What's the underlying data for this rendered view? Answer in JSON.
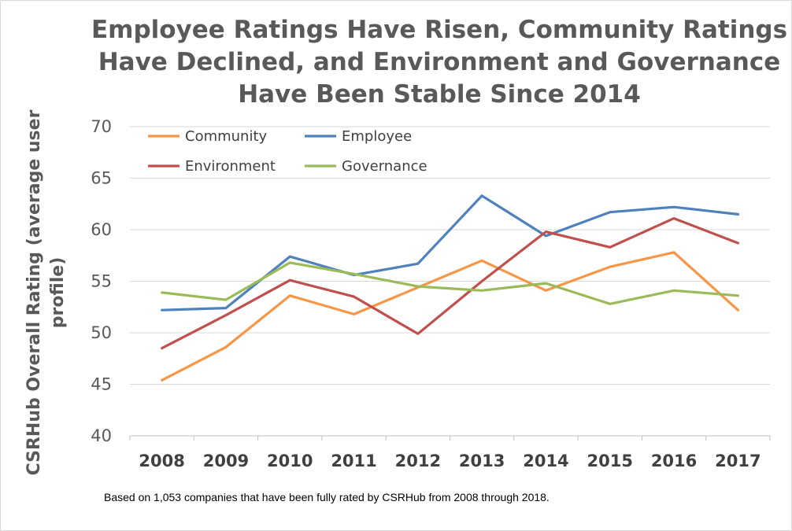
{
  "chart_data": {
    "type": "line",
    "title": [
      "Employee Ratings Have Risen, Community Ratings",
      "Have Declined, and Environment and Governance",
      "Have Been Stable Since 2014"
    ],
    "ylabel": [
      "CSRHub Overall Rating (average user",
      "profile)"
    ],
    "xlabel": "",
    "categories": [
      "2008",
      "2009",
      "2010",
      "2011",
      "2012",
      "2013",
      "2014",
      "2015",
      "2016",
      "2017"
    ],
    "ylim": [
      40,
      70
    ],
    "yticks": [
      40,
      45,
      50,
      55,
      60,
      65,
      70
    ],
    "grid": "horizontal",
    "legend_placement": "top-left inside plot, 2 columns",
    "series": [
      {
        "name": "Community",
        "color": "#f79646",
        "values": [
          45.4,
          48.6,
          53.6,
          51.8,
          54.4,
          57.0,
          54.1,
          56.4,
          57.8,
          52.2
        ]
      },
      {
        "name": "Employee",
        "color": "#4f81bd",
        "values": [
          52.2,
          52.4,
          57.4,
          55.6,
          56.7,
          63.3,
          59.4,
          61.7,
          62.2,
          61.5
        ]
      },
      {
        "name": "Environment",
        "color": "#c0504d",
        "values": [
          48.5,
          51.7,
          55.1,
          53.5,
          49.9,
          55.0,
          59.8,
          58.3,
          61.1,
          58.7
        ]
      },
      {
        "name": "Governance",
        "color": "#9bbb59",
        "values": [
          53.9,
          53.2,
          56.8,
          55.7,
          54.5,
          54.1,
          54.8,
          52.8,
          54.1,
          53.6
        ]
      }
    ],
    "footnote": "Based on 1,053 companies that have been fully rated by CSRHub from 2008 through 2018."
  }
}
